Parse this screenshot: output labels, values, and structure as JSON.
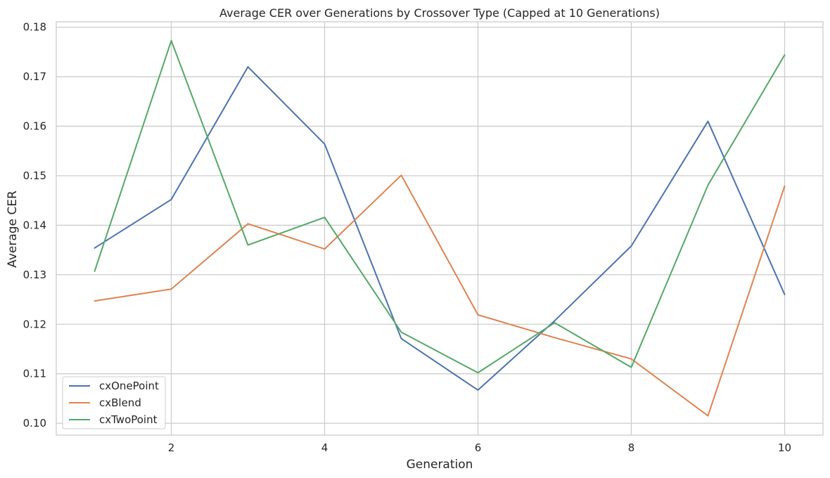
{
  "chart_data": {
    "type": "line",
    "title": "Average CER over Generations by Crossover Type (Capped at 10 Generations)",
    "xlabel": "Generation",
    "ylabel": "Average CER",
    "x": [
      1,
      2,
      3,
      4,
      5,
      6,
      7,
      8,
      9,
      10
    ],
    "xlim": [
      0.5,
      10.5
    ],
    "ylim": [
      0.0976,
      0.1811
    ],
    "xticks": [
      2,
      4,
      6,
      8,
      10
    ],
    "xtick_labels": [
      "2",
      "4",
      "6",
      "8",
      "10"
    ],
    "yticks": [
      0.1,
      0.11,
      0.12,
      0.13,
      0.14,
      0.15,
      0.16,
      0.17,
      0.18
    ],
    "ytick_labels": [
      "0.10",
      "0.11",
      "0.12",
      "0.13",
      "0.14",
      "0.15",
      "0.16",
      "0.17",
      "0.18"
    ],
    "grid": true,
    "legend_position": "lower-left",
    "series": [
      {
        "name": "cxOnePoint",
        "color": "#4c72b0",
        "values": [
          0.1354,
          0.1452,
          0.172,
          0.1564,
          0.1171,
          0.1067,
          0.1207,
          0.1358,
          0.161,
          0.126
        ]
      },
      {
        "name": "cxBlend",
        "color": "#dd8452",
        "values": [
          0.1247,
          0.1271,
          0.1403,
          0.1352,
          0.1501,
          0.1219,
          0.1173,
          0.113,
          0.1015,
          0.1479
        ]
      },
      {
        "name": "cxTwoPoint",
        "color": "#55a868",
        "values": [
          0.1307,
          0.1773,
          0.136,
          0.1416,
          0.1184,
          0.1102,
          0.1203,
          0.1113,
          0.1481,
          0.1744
        ]
      }
    ]
  }
}
